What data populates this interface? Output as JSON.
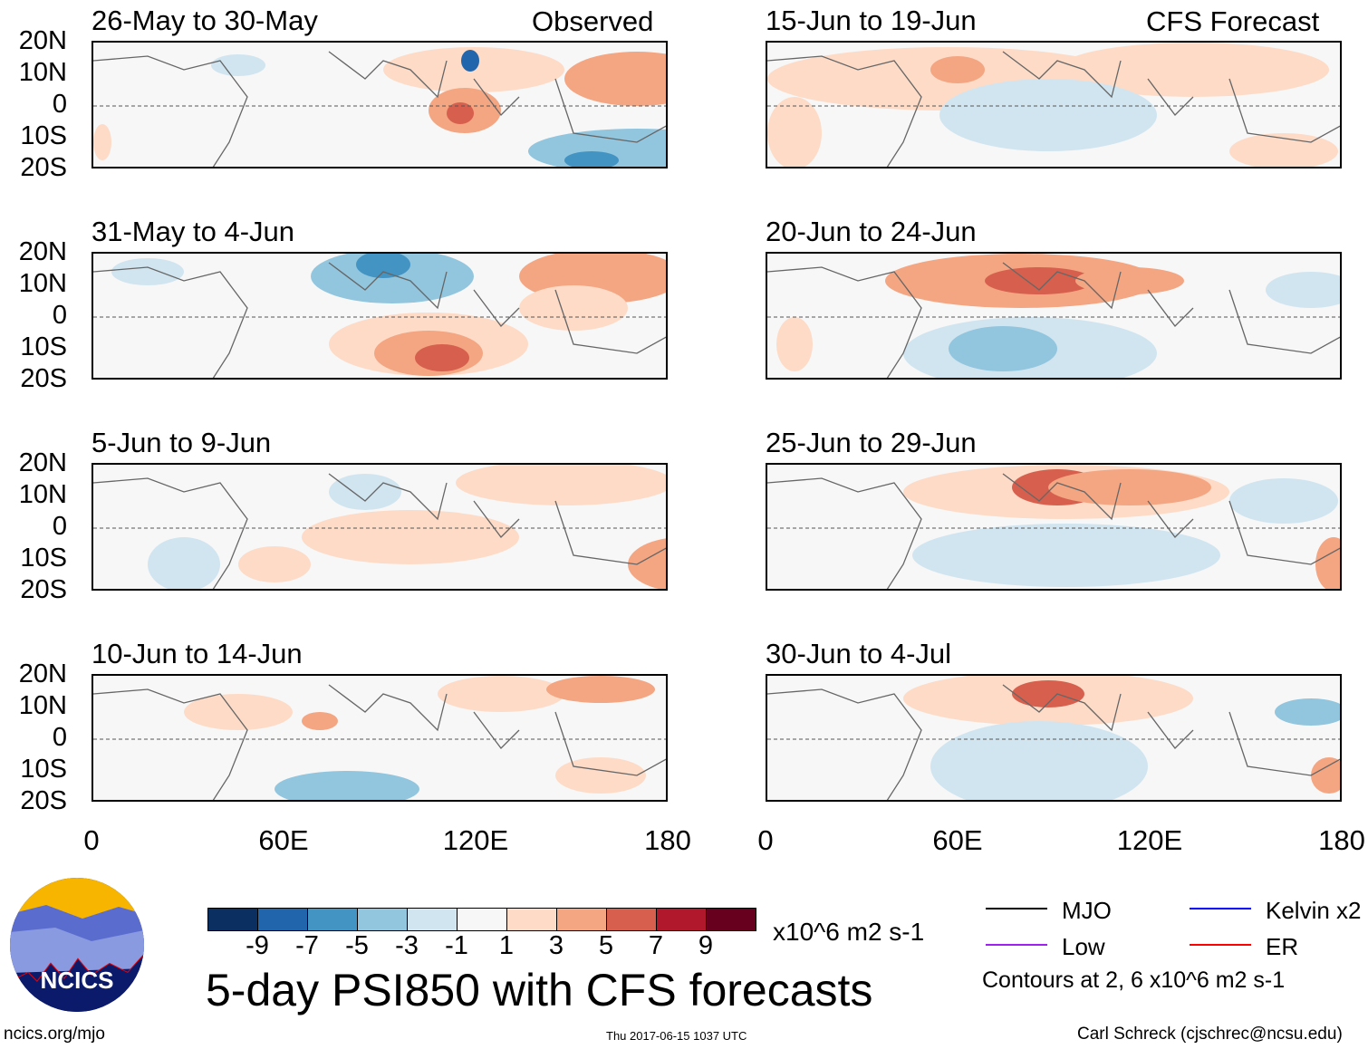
{
  "chart_data": {
    "type": "heatmap",
    "title": "5-day PSI850 with CFS forecasts",
    "column_labels": {
      "observed": "Observed",
      "forecast": "CFS Forecast"
    },
    "panels": [
      {
        "title": "26-May to 30-May",
        "column": "observed"
      },
      {
        "title": "31-May to 4-Jun",
        "column": "observed"
      },
      {
        "title": "5-Jun to 9-Jun",
        "column": "observed"
      },
      {
        "title": "10-Jun to 14-Jun",
        "column": "observed"
      },
      {
        "title": "15-Jun to 19-Jun",
        "column": "forecast"
      },
      {
        "title": "20-Jun to 24-Jun",
        "column": "forecast"
      },
      {
        "title": "25-Jun to 29-Jun",
        "column": "forecast"
      },
      {
        "title": "30-Jun to 4-Jul",
        "column": "forecast"
      }
    ],
    "lat_ticks": [
      "20N",
      "10N",
      "0",
      "10S",
      "20S"
    ],
    "lon_ticks": [
      "0",
      "60E",
      "120E",
      "180"
    ],
    "lat_range": [
      -20,
      20
    ],
    "lon_range": [
      0,
      180
    ],
    "colorbar": {
      "labels": [
        "-9",
        "-7",
        "-5",
        "-3",
        "-1",
        "1",
        "3",
        "5",
        "7",
        "9"
      ],
      "colors": [
        "#0b2f60",
        "#2166ac",
        "#4393c3",
        "#92c5de",
        "#d1e5f0",
        "#f7f7f7",
        "#fddbc7",
        "#f4a582",
        "#d6604d",
        "#b2182b",
        "#67001f"
      ],
      "units": "x10^6 m2 s-1"
    },
    "legend": [
      {
        "label": "MJO",
        "color": "#000000"
      },
      {
        "label": "Kelvin x2",
        "color": "#0000ff"
      },
      {
        "label": "Low",
        "color": "#a020f0"
      },
      {
        "label": "ER",
        "color": "#ff0000"
      }
    ],
    "contour_note": "Contours at 2, 6 x10^6 m2 s-1"
  },
  "footer": {
    "logo_text": "NCICS",
    "url": "ncics.org/mjo",
    "timestamp": "Thu 2017-06-15 1037 UTC",
    "author": "Carl Schreck (cjschrec@ncsu.edu)"
  }
}
